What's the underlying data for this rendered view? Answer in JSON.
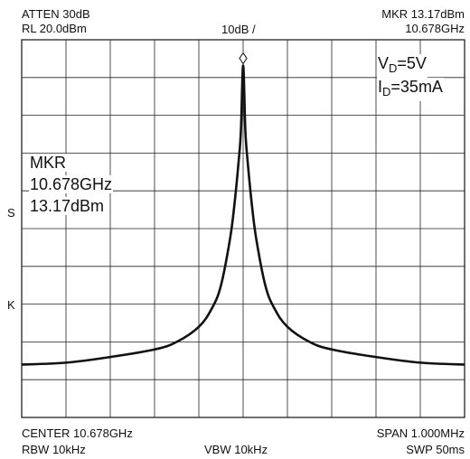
{
  "header": {
    "atten": "ATTEN 30dB",
    "ref_level": "RL 20.0dBm",
    "scale": "10dB /",
    "marker_level": "MKR 13.17dBm",
    "marker_freq": "10.678GHz"
  },
  "footer": {
    "center": "CENTER 10.678GHz",
    "span": "SPAN 1.000MHz",
    "rbw": "RBW 10kHz",
    "vbw": "VBW 10kHz",
    "sweep": "SWP 50ms"
  },
  "side_labels": {
    "s": "S",
    "k": "K"
  },
  "annotation": {
    "vd_main": "V",
    "vd_sub": "D",
    "vd_value": "=5V",
    "id_main": "I",
    "id_sub": "D",
    "id_value": "=35mA"
  },
  "marker_box": {
    "title": "MKR",
    "freq": "10.678GHz",
    "level": "13.17dBm"
  },
  "chart_data": {
    "type": "line",
    "x": [
      -500,
      -400,
      -300,
      -200,
      -150,
      -100,
      -70,
      -50,
      -30,
      -20,
      -10,
      -5,
      0,
      5,
      10,
      20,
      30,
      50,
      70,
      100,
      150,
      200,
      300,
      400,
      500
    ],
    "series": [
      {
        "values": [
          -66,
          -65.5,
          -64,
          -62,
          -60,
          -56,
          -51,
          -45,
          -33,
          -24,
          -12,
          -4,
          13.17,
          -4,
          -12,
          -24,
          -33,
          -45,
          -51,
          -56,
          -60,
          -62,
          -64,
          -65.5,
          -66
        ]
      }
    ],
    "xlim": [
      -500,
      500
    ],
    "ylim": [
      -80,
      20
    ],
    "grid": true,
    "grid_divisions": {
      "x": 10,
      "y": 10
    },
    "marker": {
      "x": 0,
      "y": 13.17
    },
    "color": "#111111"
  }
}
